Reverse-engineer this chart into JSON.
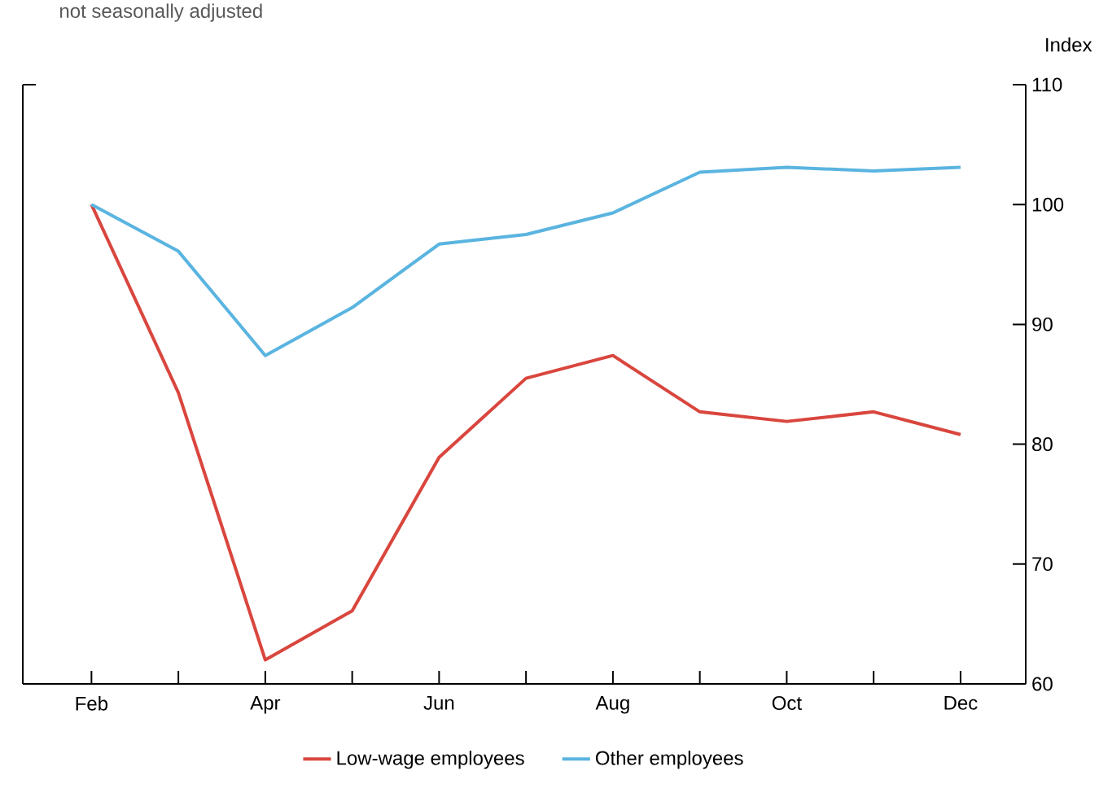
{
  "chart_data": {
    "type": "line",
    "subtitle": "not seasonally adjusted",
    "ylabel": "Index",
    "categories": [
      "Feb",
      null,
      "Apr",
      null,
      "Jun",
      null,
      "Aug",
      null,
      "Oct",
      null,
      "Dec"
    ],
    "series": [
      {
        "name": "Low-wage employees",
        "color": "#d9463e",
        "values": [
          100,
          84.3,
          62.0,
          66.1,
          78.9,
          85.5,
          87.4,
          82.7,
          81.9,
          82.7,
          80.8
        ]
      },
      {
        "name": "Other employees",
        "color": "#5ab4e0",
        "values": [
          100,
          96.1,
          87.4,
          91.4,
          96.7,
          97.5,
          99.3,
          102.7,
          103.1,
          102.8,
          103.1
        ]
      }
    ],
    "ylim": [
      60,
      110
    ],
    "yticks": [
      60,
      70,
      80,
      90,
      100,
      110
    ],
    "grid": false,
    "legend": "bottom",
    "marker": "none",
    "line_style": "solid"
  }
}
